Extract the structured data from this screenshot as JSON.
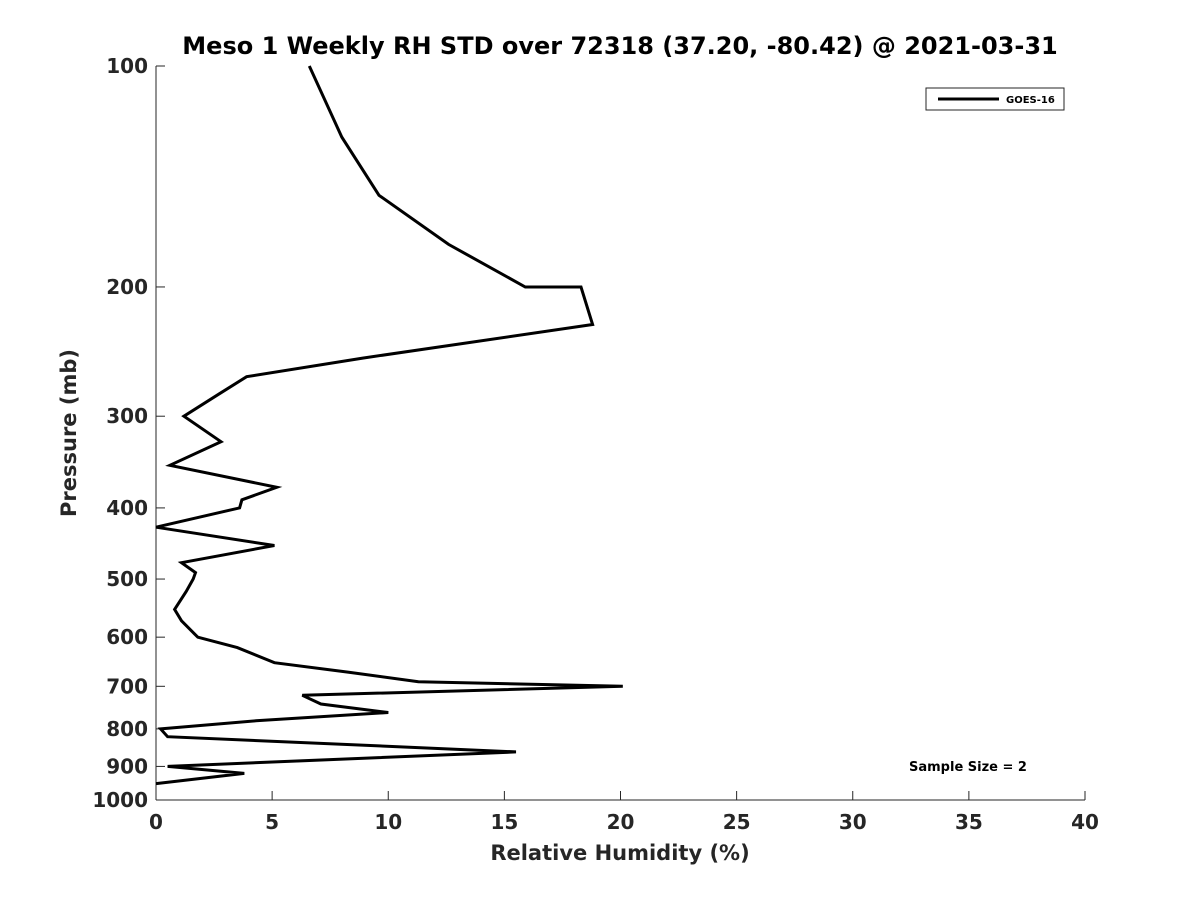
{
  "chart_data": {
    "type": "line",
    "title": "Meso 1 Weekly RH STD over 72318 (37.20, -80.42) @ 2021-03-31",
    "xlabel": "Relative Humidity (%)",
    "ylabel": "Pressure (mb)",
    "xlim": [
      0,
      40
    ],
    "ylim": [
      1000,
      100
    ],
    "yscale": "log",
    "y_reversed": true,
    "grid": false,
    "x_ticks": [
      0,
      5,
      10,
      15,
      20,
      25,
      30,
      35,
      40
    ],
    "y_ticks": [
      100,
      200,
      300,
      400,
      500,
      600,
      700,
      800,
      900,
      1000
    ],
    "legend": {
      "placement": "top-right",
      "entries": [
        "GOES-16"
      ]
    },
    "annotation": "Sample Size = 2",
    "series": [
      {
        "name": "GOES-16",
        "color": "#000000",
        "points": [
          [
            6.6,
            100
          ],
          [
            8.0,
            125
          ],
          [
            9.6,
            150
          ],
          [
            12.6,
            175
          ],
          [
            15.9,
            200
          ],
          [
            18.3,
            200
          ],
          [
            18.8,
            225
          ],
          [
            8.9,
            250
          ],
          [
            3.9,
            265
          ],
          [
            2.7,
            280
          ],
          [
            1.2,
            300
          ],
          [
            2.8,
            325
          ],
          [
            0.6,
            350
          ],
          [
            5.2,
            375
          ],
          [
            3.7,
            390
          ],
          [
            3.6,
            400
          ],
          [
            0.0,
            425
          ],
          [
            5.1,
            450
          ],
          [
            1.1,
            475
          ],
          [
            1.7,
            490
          ],
          [
            1.6,
            500
          ],
          [
            1.3,
            520
          ],
          [
            0.8,
            550
          ],
          [
            1.1,
            570
          ],
          [
            1.8,
            600
          ],
          [
            3.5,
            620
          ],
          [
            5.1,
            650
          ],
          [
            8.3,
            670
          ],
          [
            11.3,
            690
          ],
          [
            20.1,
            700
          ],
          [
            6.3,
            720
          ],
          [
            7.1,
            740
          ],
          [
            10.0,
            760
          ],
          [
            4.3,
            780
          ],
          [
            0.2,
            800
          ],
          [
            0.5,
            820
          ],
          [
            15.5,
            860
          ],
          [
            0.5,
            900
          ],
          [
            3.8,
            920
          ],
          [
            0.0,
            950
          ]
        ]
      }
    ]
  }
}
